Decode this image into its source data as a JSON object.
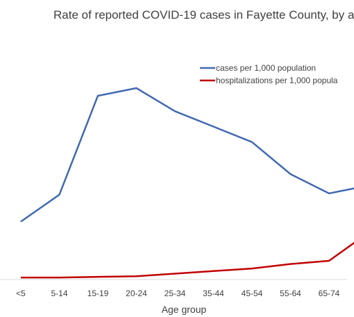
{
  "chart_data": {
    "type": "line",
    "title": "Rate of reported COVID-19 cases in Fayette County, by a",
    "xlabel": "Age group",
    "ylabel": "",
    "categories": [
      "<5",
      "5-14",
      "15-19",
      "20-24",
      "25-34",
      "35-44",
      "45-54",
      "55-64",
      "65-74",
      ""
    ],
    "ylim": [
      0,
      145
    ],
    "grid": false,
    "legend_position": "top-right",
    "series": [
      {
        "name": "cases per 1,000 population",
        "color": "#4169b0",
        "values": [
          44,
          65,
          142,
          148,
          130,
          118,
          106,
          81,
          66,
          72
        ]
      },
      {
        "name": "hospitalizations per 1,000 popula",
        "color": "#c00000",
        "values": [
          0.5,
          0.5,
          1,
          1.5,
          3.5,
          5.5,
          7.5,
          11,
          13.5,
          35
        ]
      }
    ]
  }
}
